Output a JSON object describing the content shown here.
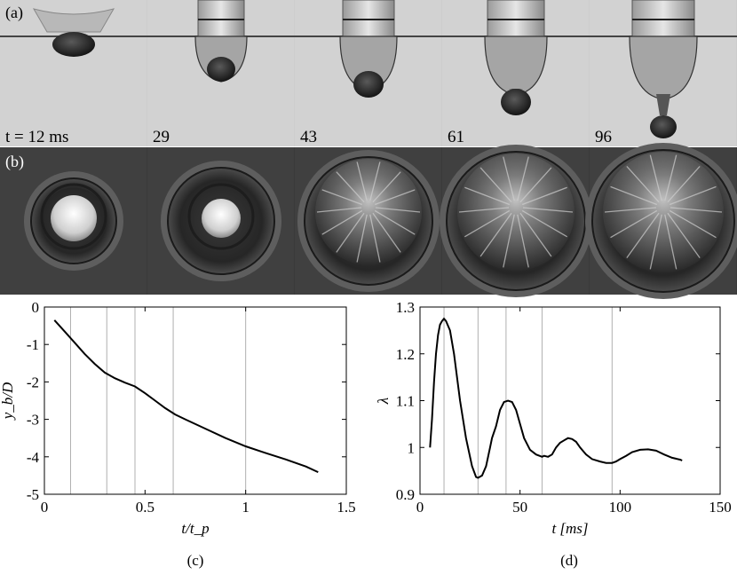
{
  "figure": {
    "panel_a": {
      "label": "(a)",
      "frames": [
        {
          "time_label": "t = 12 ms"
        },
        {
          "time_label": "29"
        },
        {
          "time_label": "43"
        },
        {
          "time_label": "61"
        },
        {
          "time_label": "96"
        }
      ]
    },
    "panel_b": {
      "label": "(b)"
    },
    "panel_c": {
      "caption": "(c)"
    },
    "panel_d": {
      "caption": "(d)"
    }
  },
  "chart_data": [
    {
      "type": "line",
      "xlabel": "t/t_p",
      "ylabel": "y_b/D",
      "xlim": [
        0,
        1.5
      ],
      "ylim": [
        -5,
        0
      ],
      "xticks": [
        "0",
        "0.5",
        "1",
        "1.5"
      ],
      "yticks": [
        "0",
        "-1",
        "-2",
        "-3",
        "-4",
        "-5"
      ],
      "grid": false,
      "vlines": [
        0.13,
        0.31,
        0.45,
        0.64,
        1.0
      ],
      "x": [
        0.05,
        0.1,
        0.15,
        0.2,
        0.25,
        0.3,
        0.35,
        0.4,
        0.45,
        0.5,
        0.55,
        0.6,
        0.65,
        0.7,
        0.8,
        0.9,
        1.0,
        1.1,
        1.2,
        1.3,
        1.36
      ],
      "y": [
        -0.35,
        -0.65,
        -0.95,
        -1.25,
        -1.52,
        -1.75,
        -1.9,
        -2.02,
        -2.12,
        -2.3,
        -2.5,
        -2.7,
        -2.87,
        -3.0,
        -3.25,
        -3.5,
        -3.72,
        -3.9,
        -4.07,
        -4.26,
        -4.41
      ]
    },
    {
      "type": "line",
      "xlabel": "t [ms]",
      "ylabel": "λ",
      "xlim": [
        0,
        150
      ],
      "ylim": [
        0.9,
        1.3
      ],
      "xticks": [
        "0",
        "50",
        "100",
        "150"
      ],
      "yticks": [
        "0.9",
        "1",
        "1.1",
        "1.2",
        "1.3"
      ],
      "grid": false,
      "vlines": [
        12,
        29,
        43,
        61,
        96
      ],
      "x": [
        5,
        6,
        7,
        8,
        9,
        10,
        11,
        12,
        13,
        15,
        17,
        20,
        23,
        26,
        28,
        29,
        31,
        33,
        35,
        36,
        38,
        40,
        42,
        44,
        46,
        48,
        50,
        52,
        55,
        58,
        61,
        62,
        64,
        66,
        68,
        70,
        72,
        74,
        76,
        78,
        80,
        83,
        86,
        90,
        93,
        96,
        98,
        100,
        103,
        106,
        110,
        114,
        118,
        122,
        126,
        130,
        131
      ],
      "y": [
        1.0,
        1.06,
        1.14,
        1.2,
        1.24,
        1.262,
        1.27,
        1.275,
        1.27,
        1.25,
        1.2,
        1.1,
        1.02,
        0.96,
        0.937,
        0.935,
        0.94,
        0.96,
        1.0,
        1.02,
        1.045,
        1.08,
        1.097,
        1.1,
        1.097,
        1.08,
        1.05,
        1.02,
        0.995,
        0.985,
        0.98,
        0.982,
        0.98,
        0.985,
        1.0,
        1.01,
        1.015,
        1.02,
        1.018,
        1.012,
        1.0,
        0.985,
        0.975,
        0.97,
        0.967,
        0.967,
        0.97,
        0.975,
        0.982,
        0.99,
        0.995,
        0.996,
        0.993,
        0.985,
        0.978,
        0.974,
        0.972
      ]
    }
  ]
}
